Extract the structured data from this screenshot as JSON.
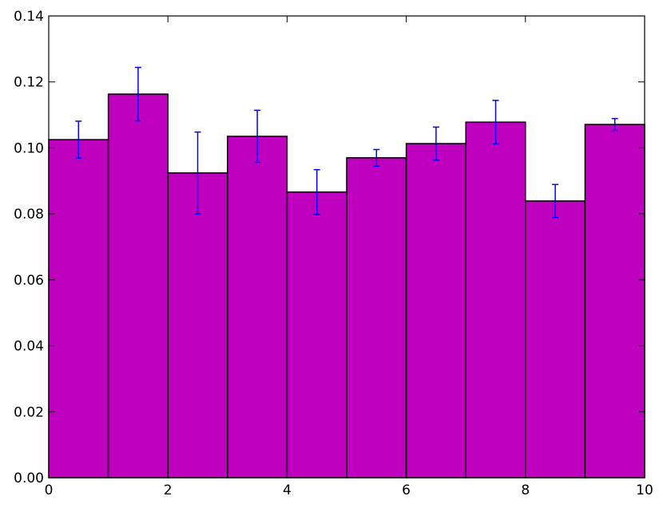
{
  "chart_data": {
    "type": "histogram",
    "bins": [
      0,
      1,
      2,
      3,
      4,
      5,
      6,
      7,
      8,
      9,
      10
    ],
    "values": [
      0.1025,
      0.1163,
      0.0924,
      0.1035,
      0.0866,
      0.097,
      0.1013,
      0.1078,
      0.0839,
      0.1071
    ],
    "errors": [
      0.0056,
      0.0081,
      0.0124,
      0.0079,
      0.0068,
      0.0025,
      0.005,
      0.0066,
      0.005,
      0.0018
    ],
    "color": "#bf00bf",
    "error_color": "#0000ff",
    "xlim": [
      0,
      10
    ],
    "xticks": [
      0,
      2,
      4,
      6,
      8,
      10
    ],
    "ylim": [
      0,
      0.14
    ],
    "yticks": [
      {
        "value": 0,
        "label": "0.00"
      },
      {
        "value": 0.02,
        "label": "0.02"
      },
      {
        "value": 0.04,
        "label": "0.04"
      },
      {
        "value": 0.06,
        "label": "0.06"
      },
      {
        "value": 0.08,
        "label": "0.08"
      },
      {
        "value": 0.1,
        "label": "0.10"
      },
      {
        "value": 0.12,
        "label": "0.12"
      },
      {
        "value": 0.14,
        "label": "0.14"
      }
    ]
  }
}
